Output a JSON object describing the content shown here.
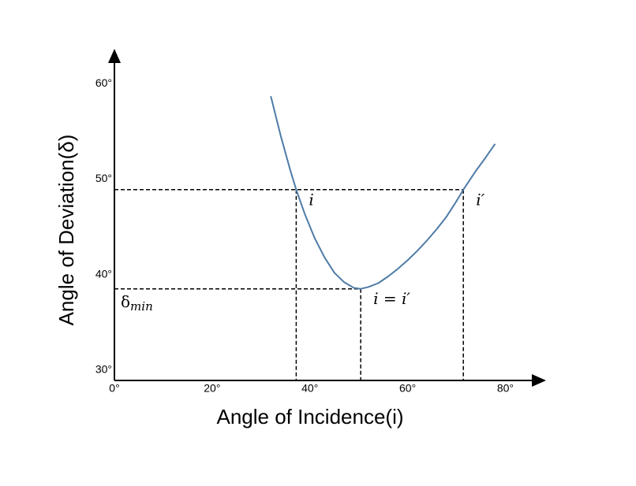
{
  "chart_data": {
    "type": "line",
    "x_label": "Angle of Incidence(i)",
    "y_label": "Angle of Deviation(δ)",
    "x": [
      32,
      34,
      36,
      37.2,
      39,
      41,
      43,
      45,
      47,
      49,
      50.4,
      52,
      54,
      56,
      58,
      60,
      62,
      64,
      66,
      68,
      70,
      71.4,
      74,
      76,
      77.9
    ],
    "series": [
      {
        "color": "#4f7ba7",
        "values": [
          59.2,
          55.1,
          51.4,
          49.4,
          46.8,
          44.3,
          42.3,
          40.7,
          39.7,
          39.1,
          39.0,
          39.2,
          39.6,
          40.3,
          41.1,
          42.0,
          43.0,
          44.1,
          45.3,
          46.6,
          48.2,
          49.4,
          51.4,
          52.8,
          54.2
        ]
      }
    ],
    "xlim": [
      0,
      88
    ],
    "ylim": [
      29.4,
      64
    ],
    "xticks": [
      {
        "value": 0,
        "label": "0°"
      },
      {
        "value": 20,
        "label": "20°"
      },
      {
        "value": 40,
        "label": "40°"
      },
      {
        "value": 60,
        "label": "60°"
      },
      {
        "value": 80,
        "label": "80°"
      }
    ],
    "yticks": [
      {
        "value": 30,
        "label": "30°"
      },
      {
        "value": 40,
        "label": "40°"
      },
      {
        "value": 50,
        "label": "50°"
      },
      {
        "value": 60,
        "label": "60°"
      }
    ],
    "markers": [
      {
        "x": 37.2,
        "y": 49.4,
        "label": "i"
      },
      {
        "x": 71.4,
        "y": 49.4,
        "label": "i′"
      },
      {
        "x": 50.4,
        "y": 39.0,
        "label": "i = i′"
      }
    ],
    "min_label": {
      "symbol": "δ",
      "subscript": "min"
    }
  }
}
